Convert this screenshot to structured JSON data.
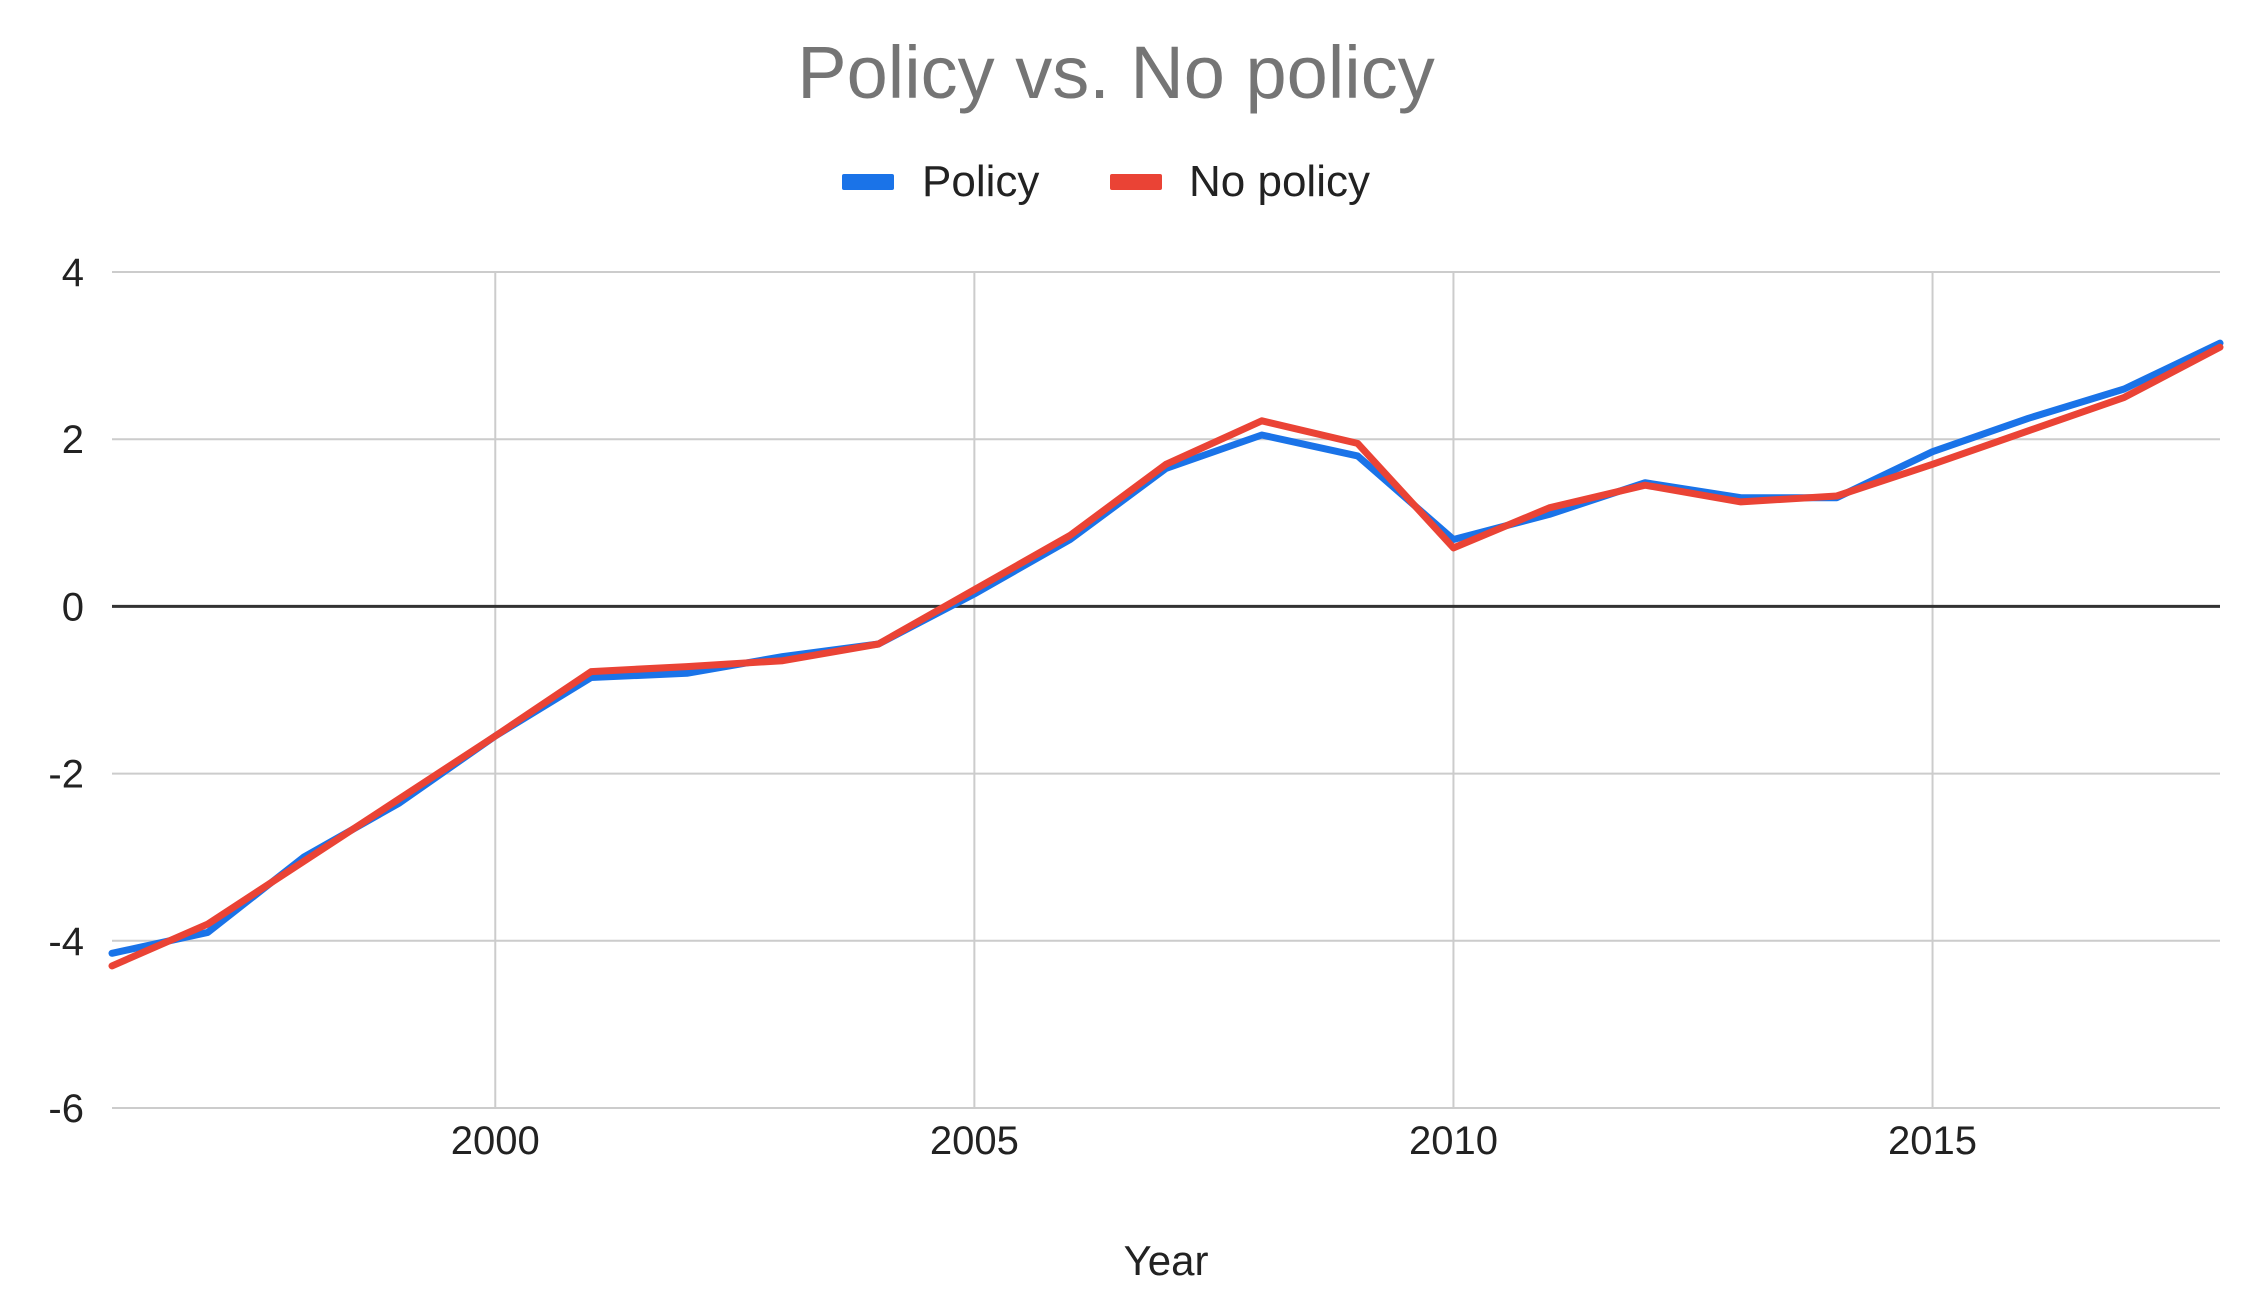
{
  "chart_data": {
    "type": "line",
    "title": "Policy vs. No policy",
    "xlabel": "Year",
    "ylabel": "",
    "xlim": [
      1996,
      2018
    ],
    "ylim": [
      -6,
      4
    ],
    "x_ticks": [
      2000,
      2005,
      2010,
      2015
    ],
    "y_ticks": [
      4,
      2,
      0,
      -2,
      -4,
      -6
    ],
    "grid": true,
    "legend": "top",
    "x": [
      1996,
      1997,
      1998,
      1999,
      2000,
      2001,
      2002,
      2003,
      2004,
      2005,
      2006,
      2007,
      2008,
      2009,
      2010,
      2011,
      2012,
      2013,
      2014,
      2015,
      2016,
      2017,
      2018
    ],
    "series": [
      {
        "name": "Policy",
        "color": "#1a73e8",
        "values": [
          -4.15,
          -3.9,
          -3.0,
          -2.35,
          -1.55,
          -0.85,
          -0.8,
          -0.6,
          -0.45,
          0.15,
          0.8,
          1.65,
          2.05,
          1.8,
          0.8,
          1.1,
          1.48,
          1.3,
          1.3,
          1.85,
          2.25,
          2.6,
          3.15
        ]
      },
      {
        "name": "No policy",
        "color": "#ea4335",
        "values": [
          -4.3,
          -3.8,
          -3.05,
          -2.3,
          -1.55,
          -0.78,
          -0.72,
          -0.65,
          -0.45,
          0.2,
          0.85,
          1.7,
          2.22,
          1.95,
          0.7,
          1.18,
          1.45,
          1.25,
          1.32,
          1.7,
          2.1,
          2.5,
          3.1
        ]
      }
    ]
  }
}
